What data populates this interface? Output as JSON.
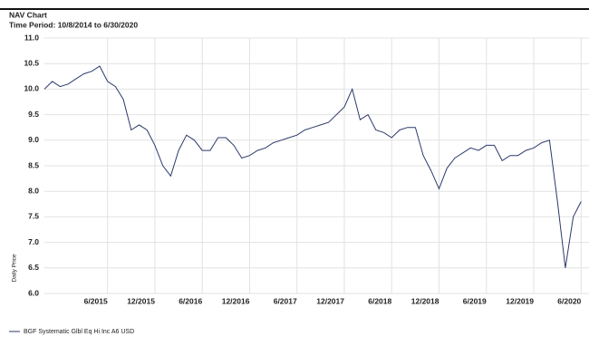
{
  "chart_data": {
    "type": "line",
    "title": "NAV Chart",
    "subtitle": "Time Period: 10/8/2014 to 6/30/2020",
    "y_label": "Daily Price",
    "x": [
      "2014-10",
      "2014-11",
      "2014-12",
      "2015-01",
      "2015-02",
      "2015-03",
      "2015-04",
      "2015-05",
      "2015-06",
      "2015-07",
      "2015-08",
      "2015-09",
      "2015-10",
      "2015-11",
      "2015-12",
      "2016-01",
      "2016-02",
      "2016-03",
      "2016-04",
      "2016-05",
      "2016-06",
      "2016-07",
      "2016-08",
      "2016-09",
      "2016-10",
      "2016-11",
      "2016-12",
      "2017-01",
      "2017-02",
      "2017-03",
      "2017-04",
      "2017-05",
      "2017-06",
      "2017-07",
      "2017-08",
      "2017-09",
      "2017-10",
      "2017-11",
      "2017-12",
      "2018-01",
      "2018-02",
      "2018-03",
      "2018-04",
      "2018-05",
      "2018-06",
      "2018-07",
      "2018-08",
      "2018-09",
      "2018-10",
      "2018-11",
      "2018-12",
      "2019-01",
      "2019-02",
      "2019-03",
      "2019-04",
      "2019-05",
      "2019-06",
      "2019-07",
      "2019-08",
      "2019-09",
      "2019-10",
      "2019-11",
      "2019-12",
      "2020-01",
      "2020-02",
      "2020-03",
      "2020-04",
      "2020-05",
      "2020-06"
    ],
    "series": [
      {
        "name": "BGF Systematic Glbl Eq Hi Inc A6 USD",
        "color": "#2d3a6b",
        "values": [
          10.0,
          10.15,
          10.05,
          10.1,
          10.2,
          10.3,
          10.35,
          10.45,
          10.15,
          10.05,
          9.8,
          9.2,
          9.3,
          9.2,
          8.9,
          8.5,
          8.3,
          8.8,
          9.1,
          9.0,
          8.8,
          8.8,
          9.05,
          9.05,
          8.9,
          8.65,
          8.7,
          8.8,
          8.85,
          8.95,
          9.0,
          9.05,
          9.1,
          9.2,
          9.25,
          9.3,
          9.35,
          9.5,
          9.65,
          10.0,
          9.4,
          9.5,
          9.2,
          9.15,
          9.05,
          9.2,
          9.25,
          9.25,
          8.7,
          8.4,
          8.05,
          8.45,
          8.65,
          8.75,
          8.85,
          8.8,
          8.9,
          8.9,
          8.6,
          8.7,
          8.7,
          8.8,
          8.85,
          8.95,
          9.0,
          7.8,
          6.5,
          7.5,
          7.8
        ]
      }
    ],
    "xlim": [
      "2014-10",
      "2020-07"
    ],
    "xticks": [
      {
        "value": "2015-06",
        "label": "6/2015"
      },
      {
        "value": "2015-12",
        "label": "12/2015"
      },
      {
        "value": "2016-06",
        "label": "6/2016"
      },
      {
        "value": "2016-12",
        "label": "12/2016"
      },
      {
        "value": "2017-06",
        "label": "6/2017"
      },
      {
        "value": "2017-12",
        "label": "12/2017"
      },
      {
        "value": "2018-06",
        "label": "6/2018"
      },
      {
        "value": "2018-12",
        "label": "12/2018"
      },
      {
        "value": "2019-06",
        "label": "6/2019"
      },
      {
        "value": "2019-12",
        "label": "12/2019"
      },
      {
        "value": "2020-06",
        "label": "6/2020"
      }
    ],
    "ylim": [
      6,
      11
    ],
    "yticks": [
      {
        "value": 6,
        "label": "6.0"
      },
      6.5,
      {
        "value": 7,
        "label": "7.0"
      },
      7.5,
      {
        "value": 8,
        "label": "8.0"
      },
      8.5,
      {
        "value": 9,
        "label": "9.0"
      },
      9.5,
      {
        "value": 10,
        "label": "10.0"
      },
      10.5,
      {
        "value": 11,
        "label": "11.0"
      }
    ],
    "grid": true
  }
}
